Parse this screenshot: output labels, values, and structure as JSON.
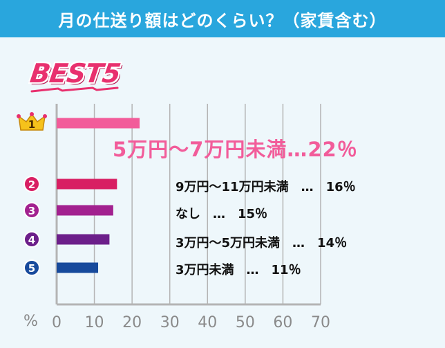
{
  "header": {
    "title": "月の仕送り額はどのくらい？（家賃含む）"
  },
  "badge": {
    "text": "BEST5"
  },
  "colors": {
    "header_bg": "#29a6dd",
    "rank1": "#f25c9a",
    "rank2": "#d81f63",
    "rank3": "#a2218f",
    "rank4": "#6c1f8a",
    "rank5": "#174a9c",
    "crown": "#f6c21b",
    "axis": "#b4b4b4"
  },
  "labels": [
    "5万円～7万円未満…22％",
    "9万円～11万円未満　…　16％",
    "なし　…　15％",
    "3万円～5万円未満　…　14％",
    "3万円未満　…　11％"
  ],
  "chart_data": {
    "type": "bar",
    "orientation": "horizontal",
    "title": "月の仕送り額はどのくらい？（家賃含む）",
    "categories": [
      "5万円～7万円未満",
      "9万円～11万円未満",
      "なし",
      "3万円～5万円未満",
      "3万円未満"
    ],
    "values": [
      22,
      16,
      15,
      14,
      11
    ],
    "ranks": [
      "1",
      "2",
      "3",
      "4",
      "5"
    ],
    "xlabel": "%",
    "xlim": [
      0,
      70
    ],
    "xticks": [
      "0",
      "10",
      "20",
      "30",
      "40",
      "50",
      "60",
      "70"
    ],
    "grid": true,
    "rank_icons": [
      "crown-icon",
      "circle-number-icon",
      "circle-number-icon",
      "circle-number-icon",
      "circle-number-icon"
    ]
  }
}
